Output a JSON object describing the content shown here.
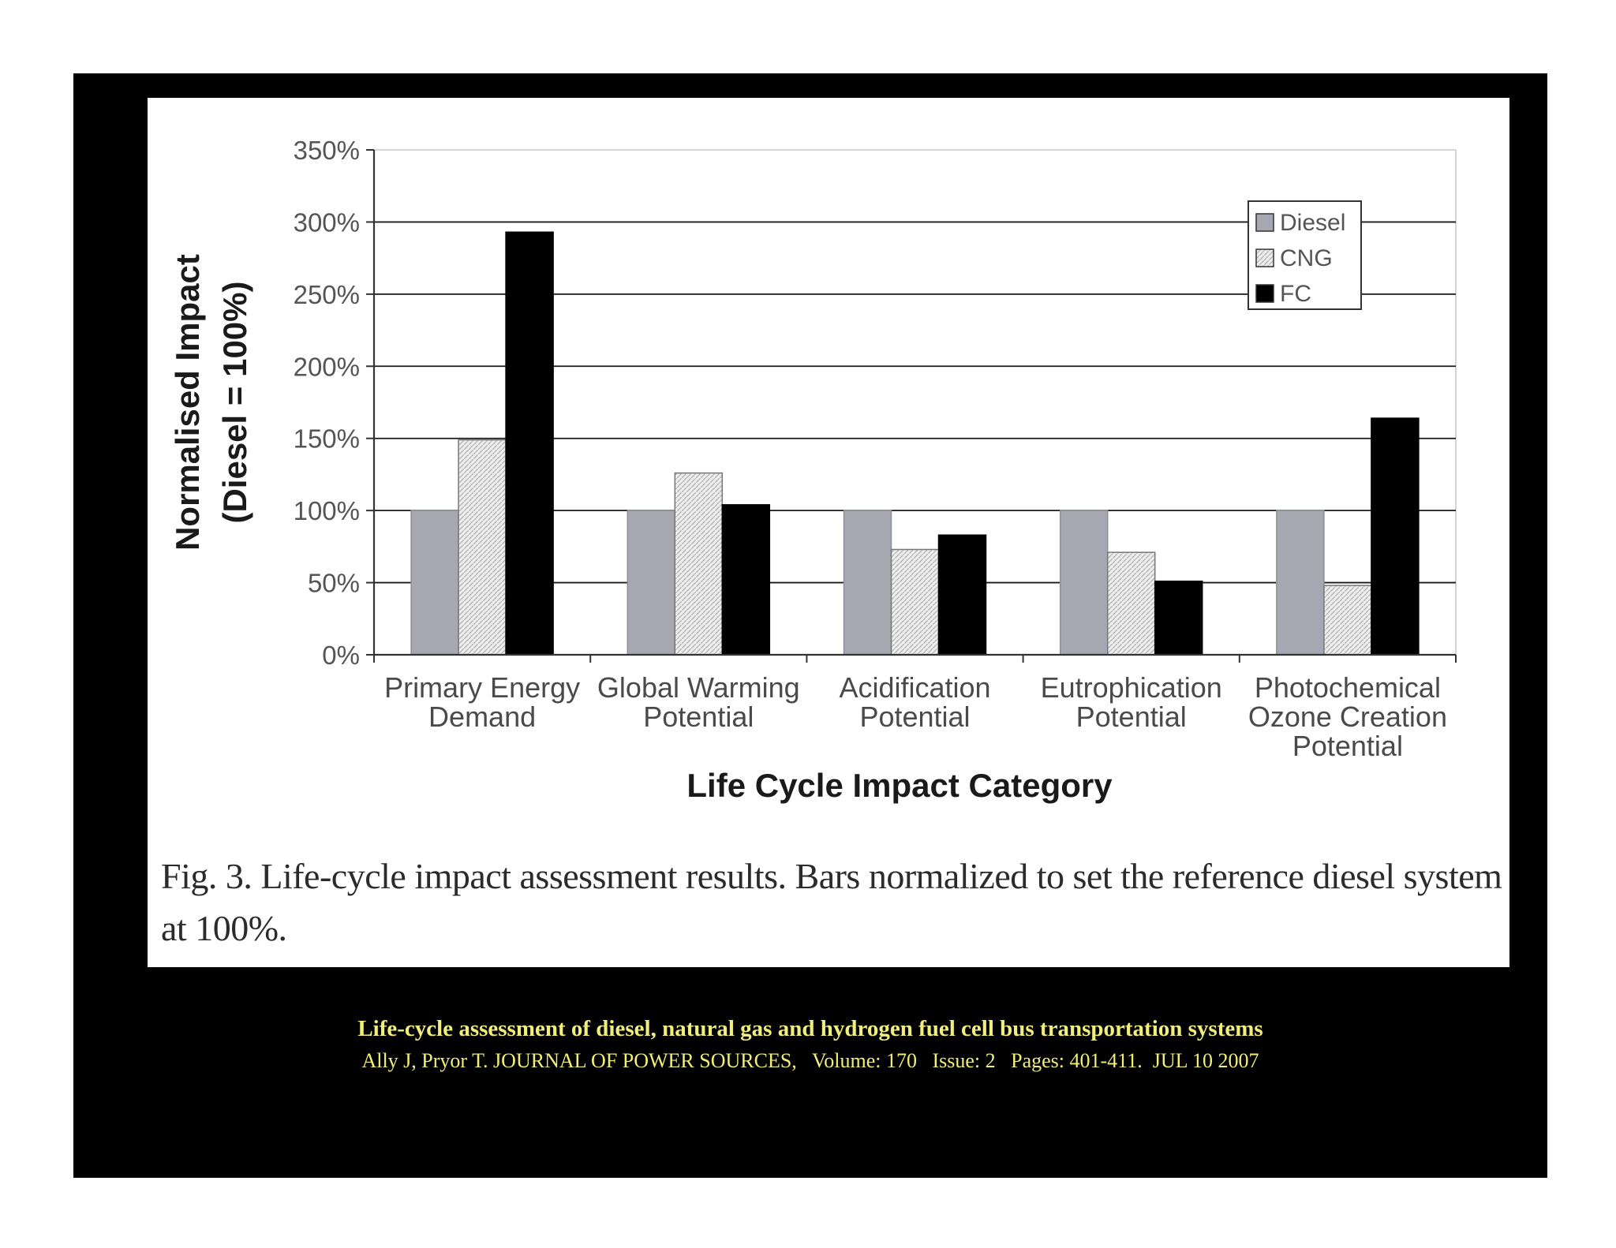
{
  "chart_data": {
    "type": "bar",
    "categories": [
      [
        "Primary Energy",
        "Demand"
      ],
      [
        "Global Warming",
        "Potential"
      ],
      [
        "Acidification",
        "Potential"
      ],
      [
        "Eutrophication",
        "Potential"
      ],
      [
        "Photochemical",
        "Ozone Creation",
        "Potential"
      ]
    ],
    "series": [
      {
        "name": "Diesel",
        "values": [
          100,
          100,
          100,
          100,
          100
        ],
        "color": "#a7a7b2"
      },
      {
        "name": "CNG",
        "values": [
          149,
          126,
          73,
          71,
          48
        ],
        "color": "#e6e6e6"
      },
      {
        "name": "FC",
        "values": [
          293,
          104,
          83,
          51,
          164
        ],
        "color": "#000000"
      }
    ],
    "ylabel": [
      "Normalised Impact",
      "(Diesel = 100%)"
    ],
    "xlabel": "Life Cycle Impact Category",
    "ylim": [
      0,
      350
    ],
    "yticks": [
      0,
      50,
      100,
      150,
      200,
      250,
      300,
      350
    ],
    "ytick_labels": [
      "0%",
      "50%",
      "100%",
      "150%",
      "200%",
      "250%",
      "300%",
      "350%"
    ],
    "grid": true,
    "legend": "top-right"
  },
  "caption": "Fig. 3.  Life-cycle impact assessment results. Bars normalized to set the reference diesel system at 100%.",
  "footer": {
    "title": "Life-cycle assessment of diesel, natural gas and hydrogen fuel cell bus transportation systems",
    "citation": "Ally J, Pryor T. JOURNAL OF POWER SOURCES,   Volume: 170   Issue: 2   Pages: 401-411.  JUL 10 2007"
  }
}
